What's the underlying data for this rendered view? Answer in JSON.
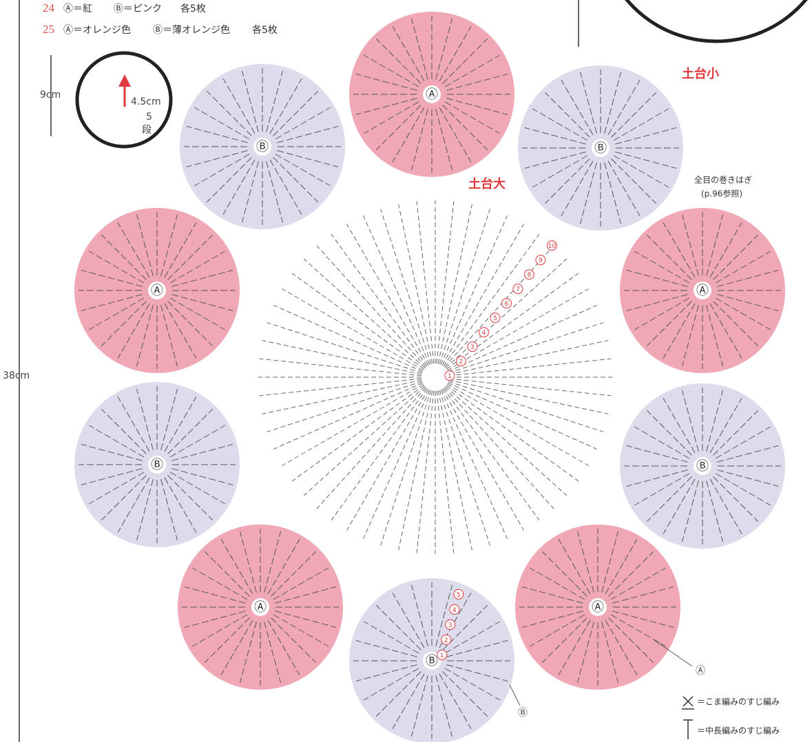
{
  "header": {
    "lines": [
      {
        "number": "24",
        "a": "Ⓐ＝紅",
        "b": "Ⓑ＝ピンク",
        "count": "各5枚"
      },
      {
        "number": "25",
        "a": "Ⓐ＝オレンジ色",
        "b": "Ⓑ＝薄オレンジ色",
        "count": "各5枚"
      }
    ]
  },
  "dimensions": {
    "height": "9cm",
    "radius": "4.5cm",
    "rows_number": "5",
    "rows_unit": "段",
    "total": "38cm"
  },
  "labels": {
    "small_base": "土台小",
    "large_base": "土台大",
    "join": "全目の巻きはぎ",
    "join_ref": "(p.96参照)"
  },
  "motifs": [
    "Ⓐ",
    "Ⓑ",
    "Ⓐ",
    "Ⓑ",
    "Ⓐ",
    "Ⓑ",
    "Ⓐ",
    "Ⓑ",
    "Ⓐ",
    "Ⓑ"
  ],
  "callouts": [
    "Ⓐ",
    "Ⓑ"
  ],
  "center_rows": [
    "1",
    "2",
    "3",
    "4",
    "5",
    "6",
    "7",
    "8",
    "9",
    "10"
  ],
  "motif_rows": [
    "1",
    "2",
    "3",
    "4",
    "5"
  ],
  "legend": [
    "＝こま編みのすじ編み",
    "＝中長編みのすじ編み"
  ]
}
